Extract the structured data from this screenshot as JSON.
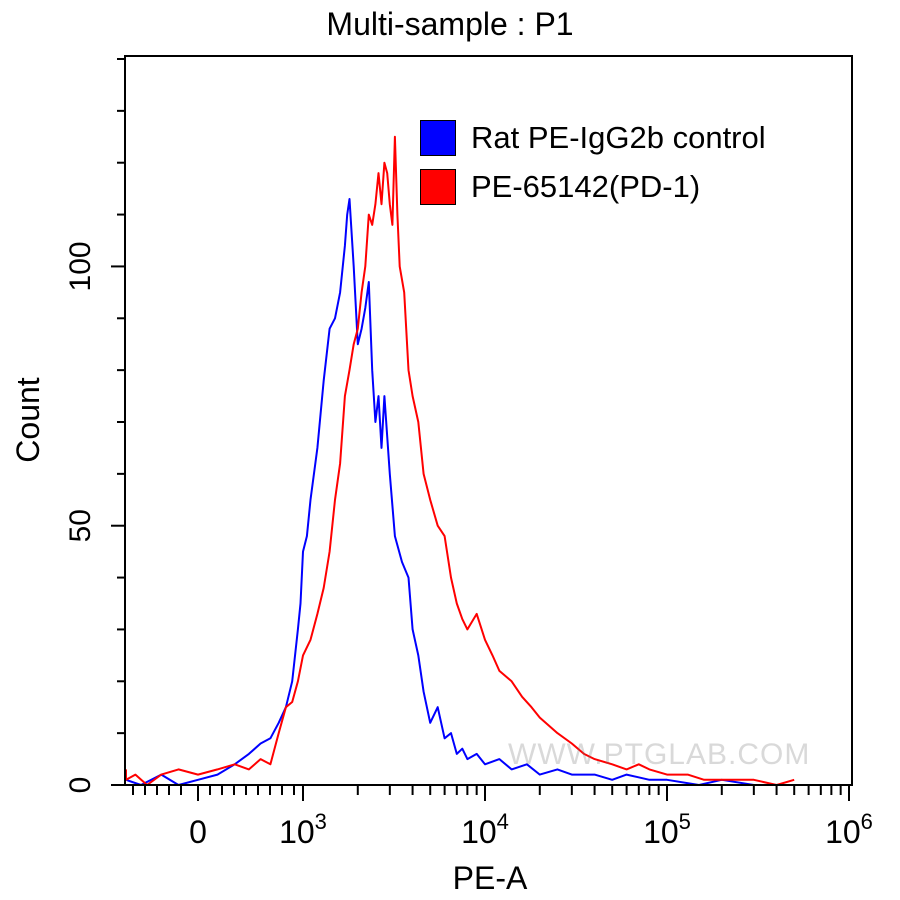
{
  "chart_data": {
    "type": "line",
    "title": "Multi-sample : P1",
    "xlabel": "PE-A",
    "ylabel": "Count",
    "x_scale": "biexponential",
    "xlim": [
      -600,
      1000000
    ],
    "ylim": [
      0,
      140
    ],
    "x_ticks": [
      {
        "value": 0,
        "base": "0",
        "exp": ""
      },
      {
        "value": 1000,
        "base": "10",
        "exp": "3"
      },
      {
        "value": 10000,
        "base": "10",
        "exp": "4"
      },
      {
        "value": 100000,
        "base": "10",
        "exp": "5"
      },
      {
        "value": 1000000,
        "base": "10",
        "exp": "6"
      }
    ],
    "y_ticks": [
      0,
      50,
      100
    ],
    "grid": false,
    "legend_position": "top-right",
    "series": [
      {
        "name": "Rat PE-IgG2b control",
        "color": "#0000ff",
        "points": [
          [
            -500,
            1
          ],
          [
            -350,
            0
          ],
          [
            -200,
            2
          ],
          [
            -100,
            0
          ],
          [
            0,
            1
          ],
          [
            100,
            2
          ],
          [
            200,
            4
          ],
          [
            300,
            6
          ],
          [
            400,
            8
          ],
          [
            500,
            9
          ],
          [
            600,
            12
          ],
          [
            700,
            15
          ],
          [
            800,
            20
          ],
          [
            900,
            30
          ],
          [
            950,
            35
          ],
          [
            1000,
            45
          ],
          [
            1050,
            48
          ],
          [
            1100,
            55
          ],
          [
            1200,
            65
          ],
          [
            1300,
            78
          ],
          [
            1400,
            88
          ],
          [
            1500,
            90
          ],
          [
            1600,
            95
          ],
          [
            1700,
            104
          ],
          [
            1750,
            110
          ],
          [
            1800,
            113
          ],
          [
            1900,
            100
          ],
          [
            2000,
            85
          ],
          [
            2100,
            88
          ],
          [
            2200,
            92
          ],
          [
            2300,
            97
          ],
          [
            2400,
            80
          ],
          [
            2500,
            70
          ],
          [
            2600,
            75
          ],
          [
            2700,
            65
          ],
          [
            2800,
            75
          ],
          [
            3000,
            60
          ],
          [
            3200,
            48
          ],
          [
            3500,
            43
          ],
          [
            3800,
            40
          ],
          [
            4000,
            30
          ],
          [
            4300,
            25
          ],
          [
            4600,
            18
          ],
          [
            5000,
            12
          ],
          [
            5500,
            15
          ],
          [
            6000,
            9
          ],
          [
            6500,
            10
          ],
          [
            7000,
            6
          ],
          [
            7500,
            7
          ],
          [
            8000,
            5
          ],
          [
            9000,
            6
          ],
          [
            10000,
            4
          ],
          [
            12000,
            5
          ],
          [
            14000,
            3
          ],
          [
            17000,
            4
          ],
          [
            20000,
            2
          ],
          [
            25000,
            3
          ],
          [
            30000,
            2
          ],
          [
            40000,
            2
          ],
          [
            50000,
            1
          ],
          [
            60000,
            2
          ],
          [
            80000,
            1
          ],
          [
            100000,
            1
          ],
          [
            150000,
            0
          ],
          [
            200000,
            1
          ],
          [
            300000,
            0
          ]
        ]
      },
      {
        "name": "PE-65142(PD-1)",
        "color": "#ff0000",
        "points": [
          [
            -600,
            3
          ],
          [
            -500,
            1
          ],
          [
            -400,
            2
          ],
          [
            -300,
            0
          ],
          [
            -200,
            2
          ],
          [
            -100,
            3
          ],
          [
            0,
            2
          ],
          [
            100,
            3
          ],
          [
            200,
            4
          ],
          [
            300,
            3
          ],
          [
            400,
            5
          ],
          [
            500,
            4
          ],
          [
            600,
            10
          ],
          [
            700,
            15
          ],
          [
            800,
            16
          ],
          [
            900,
            20
          ],
          [
            1000,
            25
          ],
          [
            1100,
            28
          ],
          [
            1200,
            33
          ],
          [
            1300,
            38
          ],
          [
            1400,
            45
          ],
          [
            1500,
            55
          ],
          [
            1600,
            62
          ],
          [
            1700,
            75
          ],
          [
            1800,
            80
          ],
          [
            1900,
            85
          ],
          [
            2000,
            88
          ],
          [
            2100,
            95
          ],
          [
            2200,
            100
          ],
          [
            2300,
            110
          ],
          [
            2400,
            108
          ],
          [
            2500,
            112
          ],
          [
            2600,
            118
          ],
          [
            2700,
            112
          ],
          [
            2800,
            120
          ],
          [
            2900,
            118
          ],
          [
            3000,
            112
          ],
          [
            3100,
            108
          ],
          [
            3200,
            125
          ],
          [
            3300,
            110
          ],
          [
            3400,
            100
          ],
          [
            3600,
            95
          ],
          [
            3800,
            80
          ],
          [
            4000,
            75
          ],
          [
            4300,
            70
          ],
          [
            4600,
            60
          ],
          [
            5000,
            55
          ],
          [
            5500,
            50
          ],
          [
            6000,
            48
          ],
          [
            6500,
            40
          ],
          [
            7000,
            35
          ],
          [
            7500,
            32
          ],
          [
            8000,
            30
          ],
          [
            9000,
            33
          ],
          [
            10000,
            28
          ],
          [
            11000,
            25
          ],
          [
            12000,
            22
          ],
          [
            14000,
            20
          ],
          [
            16000,
            17
          ],
          [
            18000,
            15
          ],
          [
            20000,
            13
          ],
          [
            25000,
            10
          ],
          [
            30000,
            8
          ],
          [
            35000,
            6
          ],
          [
            40000,
            5
          ],
          [
            50000,
            4
          ],
          [
            60000,
            3
          ],
          [
            70000,
            4
          ],
          [
            80000,
            3
          ],
          [
            100000,
            2
          ],
          [
            130000,
            2
          ],
          [
            160000,
            1
          ],
          [
            200000,
            1
          ],
          [
            300000,
            1
          ],
          [
            400000,
            0
          ],
          [
            500000,
            1
          ]
        ]
      }
    ],
    "watermark": "WWW.PTGLAB.COM"
  }
}
